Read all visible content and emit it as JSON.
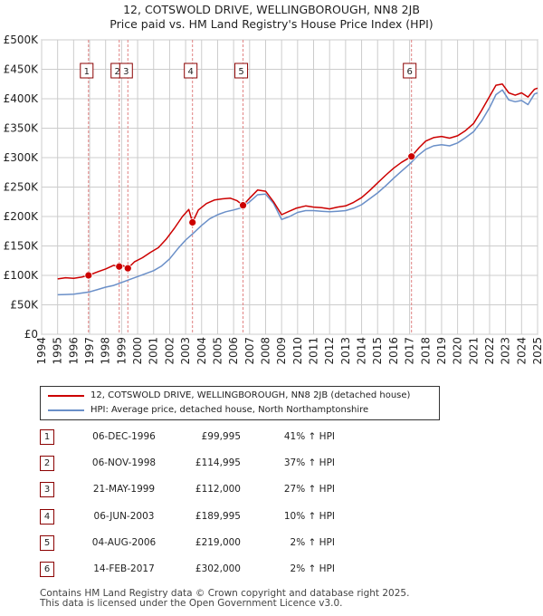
{
  "title_line1": "12, COTSWOLD DRIVE, WELLINGBOROUGH, NN8 2JB",
  "title_line2": "Price paid vs. HM Land Registry's House Price Index (HPI)",
  "colors": {
    "property": "#cc0000",
    "hpi": "#6a8fc8",
    "marker": "#cc0000",
    "sale_line": "#e08080",
    "grid": "#cccccc"
  },
  "chart_data": {
    "type": "line",
    "y_ticks": [
      {
        "value": 0,
        "label": "£0"
      },
      {
        "value": 50000,
        "label": "£50K"
      },
      {
        "value": 100000,
        "label": "£100K"
      },
      {
        "value": 150000,
        "label": "£150K"
      },
      {
        "value": 200000,
        "label": "£200K"
      },
      {
        "value": 250000,
        "label": "£250K"
      },
      {
        "value": 300000,
        "label": "£300K"
      },
      {
        "value": 350000,
        "label": "£350K"
      },
      {
        "value": 400000,
        "label": "£400K"
      },
      {
        "value": 450000,
        "label": "£450K"
      },
      {
        "value": 500000,
        "label": "£500K"
      }
    ],
    "x_ticks": [
      "1994",
      "1995",
      "1996",
      "1997",
      "1998",
      "1999",
      "2000",
      "2001",
      "2002",
      "2003",
      "2004",
      "2005",
      "2006",
      "2007",
      "2008",
      "2009",
      "2010",
      "2011",
      "2012",
      "2013",
      "2014",
      "2015",
      "2016",
      "2017",
      "2018",
      "2019",
      "2020",
      "2021",
      "2022",
      "2023",
      "2024",
      "2025"
    ],
    "xlim": [
      1994,
      2025
    ],
    "ylim": [
      0,
      500000
    ],
    "series": [
      {
        "name": "12, COTSWOLD DRIVE, WELLINGBOROUGH, NN8 2JB (detached house)",
        "x": [
          1995.0,
          1995.5,
          1996.0,
          1996.5,
          1996.93,
          1997.5,
          1998.0,
          1998.5,
          1998.85,
          1999.0,
          1999.39,
          1999.8,
          2000.3,
          2000.8,
          2001.3,
          2001.8,
          2002.3,
          2002.8,
          2003.2,
          2003.43,
          2003.8,
          2004.3,
          2004.8,
          2005.3,
          2005.8,
          2006.2,
          2006.59,
          2007.0,
          2007.5,
          2008.0,
          2008.5,
          2009.0,
          2009.4,
          2009.9,
          2010.5,
          2011.0,
          2011.5,
          2012.0,
          2012.5,
          2013.0,
          2013.5,
          2014.0,
          2014.5,
          2015.0,
          2015.5,
          2016.0,
          2016.5,
          2017.12,
          2017.6,
          2018.0,
          2018.5,
          2019.0,
          2019.5,
          2020.0,
          2020.5,
          2021.0,
          2021.5,
          2022.0,
          2022.4,
          2022.8,
          2023.2,
          2023.6,
          2024.0,
          2024.4,
          2024.8,
          2025.0
        ],
        "y": [
          94000,
          96000,
          95000,
          97000,
          99995,
          106000,
          111000,
          117000,
          114995,
          118000,
          112000,
          123000,
          130000,
          139000,
          147000,
          162000,
          180000,
          200000,
          212000,
          189995,
          211000,
          222000,
          228000,
          230000,
          231000,
          227000,
          219000,
          231000,
          245000,
          243000,
          225000,
          203000,
          208000,
          214000,
          218000,
          216000,
          215000,
          213000,
          216000,
          218000,
          224000,
          232000,
          244000,
          257000,
          270000,
          282000,
          292000,
          302000,
          317000,
          328000,
          334000,
          336000,
          333000,
          337000,
          346000,
          358000,
          380000,
          404000,
          423000,
          425000,
          410000,
          406000,
          410000,
          403000,
          416000,
          418000
        ]
      },
      {
        "name": "HPI: Average price, detached house, North Northamptonshire",
        "x": [
          1995.0,
          1995.5,
          1996.0,
          1996.5,
          1997.0,
          1997.5,
          1998.0,
          1998.5,
          1999.0,
          1999.5,
          2000.0,
          2000.5,
          2001.0,
          2001.5,
          2002.0,
          2002.5,
          2003.0,
          2003.5,
          2004.0,
          2004.5,
          2005.0,
          2005.5,
          2006.0,
          2006.5,
          2007.0,
          2007.5,
          2008.0,
          2008.5,
          2009.0,
          2009.5,
          2010.0,
          2010.5,
          2011.0,
          2011.5,
          2012.0,
          2012.5,
          2013.0,
          2013.5,
          2014.0,
          2014.5,
          2015.0,
          2015.5,
          2016.0,
          2016.5,
          2017.0,
          2017.5,
          2018.0,
          2018.5,
          2019.0,
          2019.5,
          2020.0,
          2020.5,
          2021.0,
          2021.5,
          2022.0,
          2022.4,
          2022.8,
          2023.2,
          2023.6,
          2024.0,
          2024.4,
          2024.8,
          2025.0
        ],
        "y": [
          67000,
          67500,
          68000,
          70000,
          72000,
          76000,
          80000,
          83000,
          88000,
          93000,
          98000,
          103000,
          108000,
          116000,
          128000,
          145000,
          160000,
          172000,
          185000,
          196000,
          203000,
          208000,
          211000,
          215000,
          225000,
          237000,
          238000,
          222000,
          195000,
          200000,
          207000,
          210000,
          210000,
          209000,
          208000,
          209000,
          210000,
          214000,
          220000,
          230000,
          240000,
          252000,
          265000,
          277000,
          289000,
          303000,
          314000,
          320000,
          322000,
          320000,
          325000,
          334000,
          344000,
          362000,
          385000,
          407000,
          415000,
          398000,
          395000,
          397000,
          390000,
          408000,
          410000
        ]
      }
    ],
    "sales": [
      {
        "label": "1",
        "x": 1996.93,
        "price": 99995
      },
      {
        "label": "2",
        "x": 1998.85,
        "price": 114995
      },
      {
        "label": "3",
        "x": 1999.39,
        "price": 112000
      },
      {
        "label": "4",
        "x": 2003.43,
        "price": 189995
      },
      {
        "label": "5",
        "x": 2006.59,
        "price": 219000
      },
      {
        "label": "6",
        "x": 2017.12,
        "price": 302000
      }
    ]
  },
  "legend": {
    "property_label": "12, COTSWOLD DRIVE, WELLINGBOROUGH, NN8 2JB (detached house)",
    "hpi_label": "HPI: Average price, detached house, North Northamptonshire"
  },
  "transactions": [
    {
      "num": "1",
      "date": "06-DEC-1996",
      "price": "£99,995",
      "hpi": "41% ↑ HPI"
    },
    {
      "num": "2",
      "date": "06-NOV-1998",
      "price": "£114,995",
      "hpi": "37% ↑ HPI"
    },
    {
      "num": "3",
      "date": "21-MAY-1999",
      "price": "£112,000",
      "hpi": "27% ↑ HPI"
    },
    {
      "num": "4",
      "date": "06-JUN-2003",
      "price": "£189,995",
      "hpi": "10% ↑ HPI"
    },
    {
      "num": "5",
      "date": "04-AUG-2006",
      "price": "£219,000",
      "hpi": "2% ↑ HPI"
    },
    {
      "num": "6",
      "date": "14-FEB-2017",
      "price": "£302,000",
      "hpi": "2% ↑ HPI"
    }
  ],
  "footer_line1": "Contains HM Land Registry data © Crown copyright and database right 2025.",
  "footer_line2": "This data is licensed under the Open Government Licence v3.0."
}
